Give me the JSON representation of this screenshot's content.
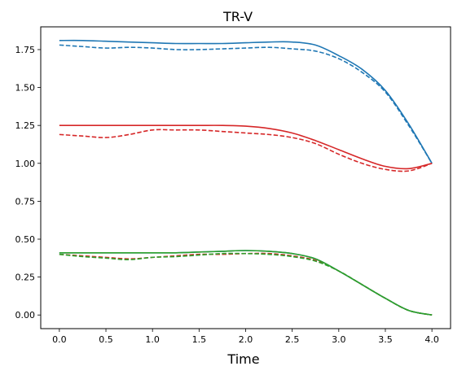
{
  "chart_data": {
    "type": "line",
    "title": "TR-V",
    "xlabel": "Time",
    "ylabel": "",
    "xlim": [
      -0.2,
      4.2
    ],
    "ylim": [
      -0.09,
      1.9
    ],
    "grid": false,
    "legend": "none",
    "x_ticks": [
      "0.0",
      "0.5",
      "1.0",
      "1.5",
      "2.0",
      "2.5",
      "3.0",
      "3.5",
      "4.0"
    ],
    "y_ticks": [
      "0.00",
      "0.25",
      "0.50",
      "0.75",
      "1.00",
      "1.25",
      "1.50",
      "1.75"
    ],
    "x": [
      0.0,
      0.25,
      0.5,
      0.75,
      1.0,
      1.25,
      1.5,
      1.75,
      2.0,
      2.25,
      2.5,
      2.75,
      3.0,
      3.25,
      3.5,
      3.75,
      4.0
    ],
    "series": [
      {
        "color": "#1f77b4",
        "style": "solid",
        "values": [
          1.81,
          1.81,
          1.805,
          1.8,
          1.795,
          1.79,
          1.79,
          1.79,
          1.795,
          1.8,
          1.8,
          1.78,
          1.71,
          1.62,
          1.48,
          1.26,
          1.0
        ]
      },
      {
        "color": "#1f77b4",
        "style": "dashed",
        "values": [
          1.78,
          1.77,
          1.76,
          1.765,
          1.76,
          1.75,
          1.75,
          1.755,
          1.76,
          1.765,
          1.755,
          1.74,
          1.69,
          1.6,
          1.47,
          1.25,
          1.0
        ]
      },
      {
        "color": "#d62728",
        "style": "solid",
        "values": [
          1.25,
          1.25,
          1.25,
          1.25,
          1.25,
          1.25,
          1.25,
          1.25,
          1.245,
          1.23,
          1.2,
          1.15,
          1.09,
          1.03,
          0.98,
          0.965,
          1.0
        ]
      },
      {
        "color": "#d62728",
        "style": "dashed",
        "values": [
          1.19,
          1.18,
          1.17,
          1.19,
          1.22,
          1.22,
          1.22,
          1.21,
          1.2,
          1.19,
          1.17,
          1.13,
          1.06,
          1.0,
          0.96,
          0.95,
          1.0
        ]
      },
      {
        "color": "#1f77b4",
        "style": "solid",
        "values": [
          0.41,
          0.41,
          0.41,
          0.41,
          0.41,
          0.41,
          0.415,
          0.42,
          0.425,
          0.42,
          0.405,
          0.37,
          0.29,
          0.2,
          0.11,
          0.03,
          0.0
        ]
      },
      {
        "color": "#d62728",
        "style": "dashed",
        "values": [
          0.4,
          0.39,
          0.38,
          0.37,
          0.38,
          0.39,
          0.4,
          0.4,
          0.405,
          0.405,
          0.39,
          0.36,
          0.29,
          0.2,
          0.11,
          0.03,
          0.0
        ]
      },
      {
        "color": "#2ca02c",
        "style": "solid",
        "values": [
          0.41,
          0.41,
          0.41,
          0.41,
          0.41,
          0.41,
          0.415,
          0.42,
          0.425,
          0.42,
          0.405,
          0.37,
          0.29,
          0.2,
          0.11,
          0.03,
          0.0
        ]
      },
      {
        "color": "#2ca02c",
        "style": "dashed",
        "values": [
          0.4,
          0.385,
          0.375,
          0.365,
          0.38,
          0.385,
          0.395,
          0.405,
          0.405,
          0.4,
          0.385,
          0.355,
          0.29,
          0.2,
          0.11,
          0.03,
          0.0
        ]
      }
    ]
  }
}
